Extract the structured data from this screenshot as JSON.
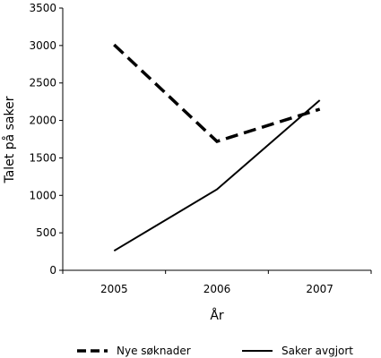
{
  "chart_data": {
    "type": "line",
    "title": "",
    "xlabel": "År",
    "ylabel": "Talet på saker",
    "categories": [
      "2005",
      "2006",
      "2007"
    ],
    "ylim": [
      0,
      3500
    ],
    "yticks": [
      0,
      500,
      1000,
      1500,
      2000,
      2500,
      3000,
      3500
    ],
    "grid": false,
    "legend_position": "bottom",
    "series": [
      {
        "name": "Nye søknader",
        "values": [
          3010,
          1720,
          2150
        ],
        "style": "dashed",
        "color": "#000000"
      },
      {
        "name": "Saker avgjort",
        "values": [
          260,
          1080,
          2270
        ],
        "style": "solid",
        "color": "#000000"
      }
    ]
  }
}
